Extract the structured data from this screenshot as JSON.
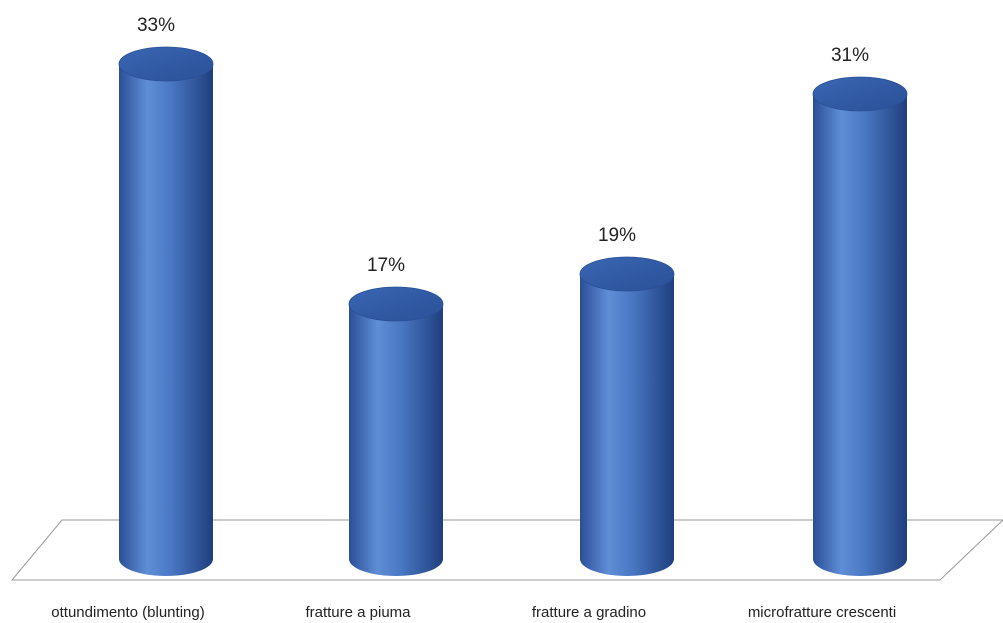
{
  "chart_data": {
    "type": "bar",
    "style": "3d-cylinder",
    "categories": [
      "ottundimento (blunting)",
      "fratture a piuma",
      "fratture a gradino",
      "microfratture crescenti"
    ],
    "values": [
      33,
      17,
      19,
      31
    ],
    "value_labels": [
      "33%",
      "17%",
      "19%",
      "31%"
    ],
    "unit": "%",
    "title": "",
    "xlabel": "",
    "ylabel": "",
    "ylim": [
      0,
      35
    ],
    "grid": false,
    "legend": "none",
    "colors": {
      "bar_main": "#4a78c4",
      "bar_light": "#7aa3e0",
      "bar_dark": "#23478a",
      "bar_top": "#2f5aa3",
      "floor_line": "#9a9a9a"
    }
  }
}
